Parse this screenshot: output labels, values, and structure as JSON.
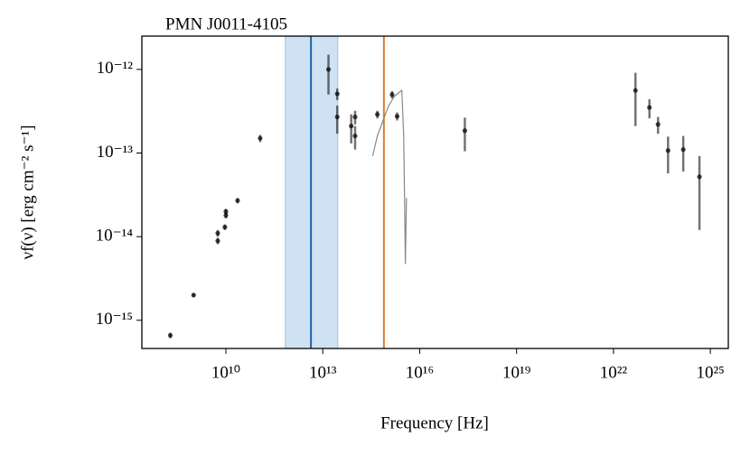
{
  "chart_data": {
    "type": "scatter",
    "title": "PMN J0011-4105",
    "x_label": "Frequency [Hz]",
    "y_label": "νf(ν) [erg cm⁻² s⁻¹]",
    "log_x": true,
    "log_y": true,
    "xlim": [
      25000000.0,
      3.6e+25
    ],
    "ylim": [
      4.6e-16,
      2.5e-12
    ],
    "xticks": [
      {
        "value": 10000000000.0,
        "label": "10¹⁰"
      },
      {
        "value": 10000000000000.0,
        "label": "10¹³"
      },
      {
        "value": 1e+16,
        "label": "10¹⁶"
      },
      {
        "value": 1e+19,
        "label": "10¹⁹"
      },
      {
        "value": 1e+22,
        "label": "10²²"
      },
      {
        "value": 1e+25,
        "label": "10²⁵"
      }
    ],
    "yticks": [
      {
        "value": 1e-15,
        "label": "10⁻¹⁵"
      },
      {
        "value": 1e-14,
        "label": "10⁻¹⁴"
      },
      {
        "value": 1e-13,
        "label": "10⁻¹³"
      },
      {
        "value": 1e-12,
        "label": "10⁻¹²"
      }
    ],
    "band": {
      "x": [
        690000000000.0,
        29000000000000.0
      ],
      "color": "#cfe2f3"
    },
    "vlines": [
      {
        "x": 4300000000000.0,
        "color": "#1f66aa"
      },
      {
        "x": 780000000000000.0,
        "color": "#e07b28"
      }
    ],
    "spectrum": {
      "color": "#888888",
      "x": [
        350000000000000.0,
        490000000000000.0,
        720000000000000.0,
        1070000000000000.0,
        1600000000000000.0,
        2300000000000000.0,
        2800000000000000.0,
        3200000000000000.0,
        3400000000000000.0,
        3600000000000000.0,
        3900000000000000.0
      ],
      "values": [
        9.2e-14,
        1.6e-13,
        2.4e-13,
        3.6e-13,
        4.7e-13,
        5.3e-13,
        5.6e-13,
        1.6e-13,
        2.9e-14,
        4.7e-15,
        2.9e-14
      ]
    },
    "series": [
      {
        "color": "#000000",
        "x": [
          190000000.0,
          1000000000.0,
          5600000000.0,
          5600000000.0,
          9300000000.0,
          10000000000.0,
          10000000000.0,
          23000000000.0,
          115000000000.0,
          15000000000000.0,
          28000000000000.0,
          28000000000000.0,
          76000000000000.0,
          100000000000000.0,
          100000000000000.0,
          490000000000000.0,
          1400000000000000.0,
          2000000000000000.0,
          2.5e+17,
          4.8e+22,
          1.3e+23,
          2.4e+23,
          4.9e+23,
          1.45e+24,
          4.6e+24
        ],
        "values": [
          6.6e-16,
          2e-15,
          1.1e-14,
          8.9e-15,
          1.3e-14,
          1.8e-14,
          2e-14,
          2.7e-14,
          1.5e-13,
          1e-12,
          5.1e-13,
          2.7e-13,
          2.1e-13,
          1.6e-13,
          2.7e-13,
          2.9e-13,
          5e-13,
          2.75e-13,
          1.85e-13,
          5.6e-13,
          3.5e-13,
          2.2e-13,
          1.07e-13,
          1.1e-13,
          5.2e-14
        ],
        "yerr": [
          5e-17,
          1e-16,
          1e-15,
          8e-16,
          1e-15,
          1.5e-15,
          1.5e-15,
          2e-15,
          1.5e-14,
          5e-13,
          8e-14,
          1e-13,
          8e-14,
          5e-14,
          5e-14,
          3e-14,
          5e-14,
          3e-14,
          8e-14,
          3.5e-13,
          9e-14,
          5e-14,
          5e-14,
          5e-14,
          4e-14
        ]
      }
    ]
  }
}
